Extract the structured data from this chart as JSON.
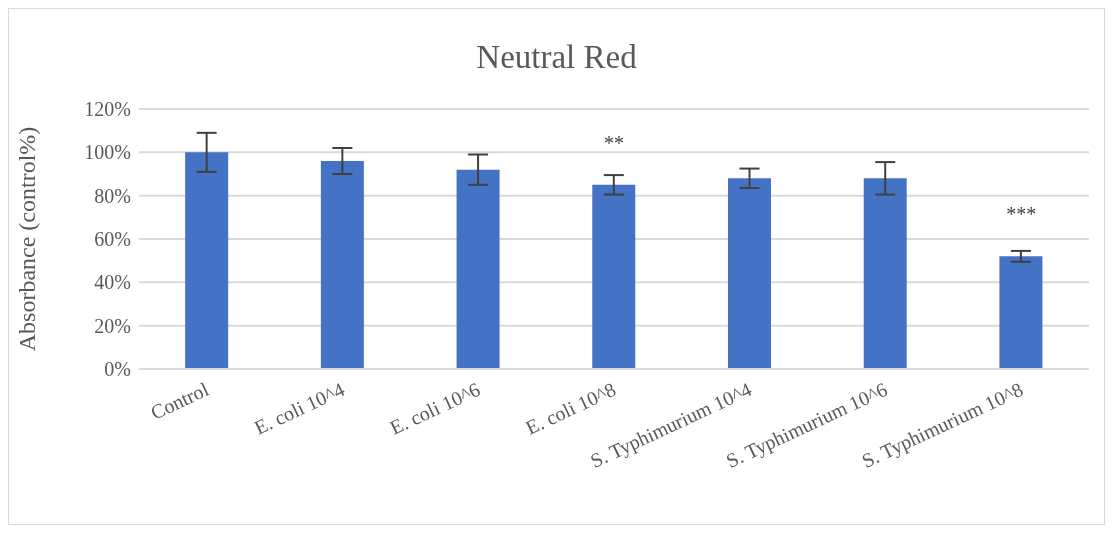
{
  "chart_data": {
    "type": "bar",
    "title": "Neutral Red",
    "ylabel": "Absorbance (control%)",
    "categories": [
      "Control",
      "E. coli 10^4",
      "E. coli 10^6",
      "E. coli 10^8",
      "S. Typhimurium 10^4",
      "S. Typhimurium 10^6",
      "S. Typhimurium 10^8"
    ],
    "values": [
      100,
      96,
      92,
      85,
      88,
      88,
      52
    ],
    "errors": [
      9,
      6,
      7,
      4.5,
      4.5,
      7.5,
      2.5
    ],
    "color": "#4472c4",
    "ylim": [
      0,
      120
    ],
    "yticks": [
      {
        "value": 0,
        "label": "0%"
      },
      {
        "value": 20,
        "label": "20%"
      },
      {
        "value": 40,
        "label": "40%"
      },
      {
        "value": 60,
        "label": "60%"
      },
      {
        "value": 80,
        "label": "80%"
      },
      {
        "value": 100,
        "label": "100%"
      },
      {
        "value": 120,
        "label": "120%"
      }
    ],
    "grid": "y",
    "annotations": [
      {
        "text": "**",
        "x": "E. coli 10^8",
        "y": 85
      },
      {
        "text": "***",
        "x": "S. Typhimurium 10^8",
        "y": 52
      }
    ]
  }
}
